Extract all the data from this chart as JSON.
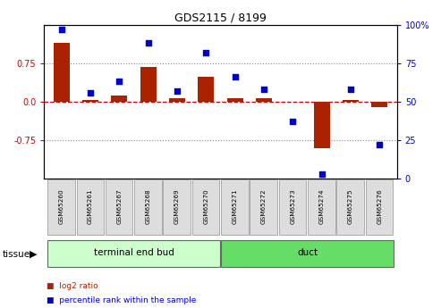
{
  "title": "GDS2115 / 8199",
  "samples": [
    "GSM65260",
    "GSM65261",
    "GSM65267",
    "GSM65268",
    "GSM65269",
    "GSM65270",
    "GSM65271",
    "GSM65272",
    "GSM65273",
    "GSM65274",
    "GSM65275",
    "GSM65276"
  ],
  "log2_ratio": [
    1.15,
    0.04,
    0.12,
    0.68,
    0.07,
    0.48,
    0.07,
    0.06,
    -0.01,
    -0.9,
    0.04,
    -0.1
  ],
  "percentile": [
    97,
    56,
    63,
    88,
    57,
    82,
    66,
    58,
    37,
    3,
    58,
    22
  ],
  "groups": [
    {
      "label": "terminal end bud",
      "start": 0,
      "end": 6,
      "color": "#ccffcc"
    },
    {
      "label": "duct",
      "start": 6,
      "end": 12,
      "color": "#66dd66"
    }
  ],
  "bar_color": "#aa2200",
  "dot_color": "#0000cc",
  "dashed_line_color": "#cc0000",
  "dotted_line_color": "#888888",
  "ylim_left": [
    -1.5,
    1.5
  ],
  "yticks_left": [
    -0.75,
    0.0,
    0.75
  ],
  "ytick_labels_left": [
    "-0.75",
    "0.0",
    "0.75"
  ],
  "ylim_right": [
    0,
    100
  ],
  "yticks_right": [
    0,
    25,
    50,
    75,
    100
  ],
  "ytick_labels_right": [
    "0",
    "25",
    "50",
    "75",
    "100%"
  ],
  "bg_color": "#ffffff",
  "tissue_label": "tissue",
  "legend_items": [
    {
      "label": "log2 ratio",
      "color": "#aa2200"
    },
    {
      "label": "percentile rank within the sample",
      "color": "#0000cc"
    }
  ]
}
